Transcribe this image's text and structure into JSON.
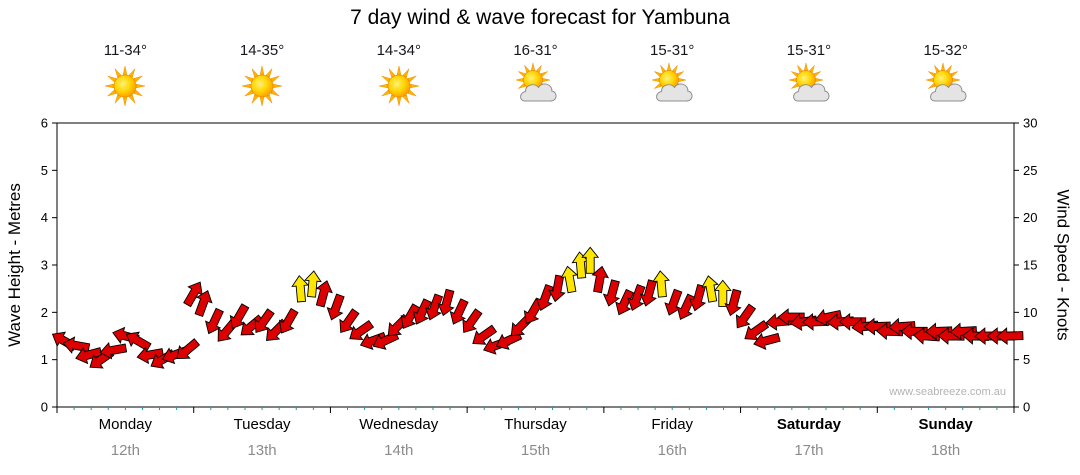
{
  "watermark": "www.seabreeze.com.au",
  "days": [
    {
      "name": "Monday",
      "date": "12th",
      "temp": "11-34°",
      "icon": "sunny",
      "bold": false
    },
    {
      "name": "Tuesday",
      "date": "13th",
      "temp": "14-35°",
      "icon": "sunny",
      "bold": false
    },
    {
      "name": "Wednesday",
      "date": "14th",
      "temp": "14-34°",
      "icon": "sunny",
      "bold": false
    },
    {
      "name": "Thursday",
      "date": "15th",
      "temp": "16-31°",
      "icon": "partly",
      "bold": false
    },
    {
      "name": "Friday",
      "date": "16th",
      "temp": "15-31°",
      "icon": "partly",
      "bold": false
    },
    {
      "name": "Saturday",
      "date": "17th",
      "temp": "15-31°",
      "icon": "partly",
      "bold": true
    },
    {
      "name": "Sunday",
      "date": "18th",
      "temp": "15-32°",
      "icon": "partly",
      "bold": true
    }
  ],
  "chart_data": {
    "type": "wind-arrow-timeseries",
    "title": "7 day wind & wave forecast for Yambuna",
    "x_axis": {
      "unit": "days",
      "span_days": 7,
      "categories": [
        "Monday 12th",
        "Tuesday 13th",
        "Wednesday 14th",
        "Thursday 15th",
        "Friday 16th",
        "Saturday 17th",
        "Sunday 18th"
      ]
    },
    "y_left": {
      "label": "Wave Height - Metres",
      "min": 0,
      "max": 6,
      "ticks": [
        0,
        1,
        2,
        3,
        4,
        5,
        6
      ]
    },
    "y_right": {
      "label": "Wind Speed - Knots",
      "min": 0,
      "max": 30,
      "ticks": [
        0,
        5,
        10,
        15,
        20,
        25,
        30
      ]
    },
    "legend": "arrow color indicates wind strength band",
    "colors": {
      "r": "#dd0000",
      "y": "#ffe600"
    },
    "point_format": [
      "x_days",
      "wind_knots",
      "arrow_rotation_deg",
      "color"
    ],
    "points": [
      [
        0.05,
        7,
        300,
        "r"
      ],
      [
        0.14,
        6.5,
        280,
        "r"
      ],
      [
        0.23,
        5.5,
        255,
        "r"
      ],
      [
        0.32,
        5,
        235,
        "r"
      ],
      [
        0.41,
        6,
        260,
        "r"
      ],
      [
        0.5,
        7.5,
        285,
        "r"
      ],
      [
        0.59,
        7,
        300,
        "r"
      ],
      [
        0.68,
        5.5,
        260,
        "r"
      ],
      [
        0.77,
        5,
        240,
        "r"
      ],
      [
        0.86,
        5.5,
        250,
        "r"
      ],
      [
        0.95,
        6,
        230,
        "r"
      ],
      [
        1.0,
        12,
        30,
        "r"
      ],
      [
        1.07,
        11,
        20,
        "r"
      ],
      [
        1.15,
        9,
        205,
        "r"
      ],
      [
        1.24,
        8,
        220,
        "r"
      ],
      [
        1.33,
        9.5,
        210,
        "r"
      ],
      [
        1.42,
        8.5,
        230,
        "r"
      ],
      [
        1.51,
        9,
        215,
        "r"
      ],
      [
        1.6,
        8,
        225,
        "r"
      ],
      [
        1.69,
        9,
        210,
        "r"
      ],
      [
        1.78,
        12.5,
        355,
        "y"
      ],
      [
        1.87,
        13,
        5,
        "y"
      ],
      [
        1.95,
        12,
        15,
        "r"
      ],
      [
        2.04,
        10.5,
        200,
        "r"
      ],
      [
        2.13,
        9,
        215,
        "r"
      ],
      [
        2.22,
        8,
        235,
        "r"
      ],
      [
        2.31,
        7,
        250,
        "r"
      ],
      [
        2.4,
        7,
        245,
        "r"
      ],
      [
        2.49,
        8.5,
        225,
        "r"
      ],
      [
        2.58,
        9.5,
        210,
        "r"
      ],
      [
        2.67,
        10,
        205,
        "r"
      ],
      [
        2.76,
        10.5,
        200,
        "r"
      ],
      [
        2.85,
        11,
        195,
        "r"
      ],
      [
        2.94,
        10,
        205,
        "r"
      ],
      [
        3.03,
        9,
        215,
        "r"
      ],
      [
        3.12,
        7.5,
        235,
        "r"
      ],
      [
        3.21,
        6.5,
        250,
        "r"
      ],
      [
        3.3,
        7,
        245,
        "r"
      ],
      [
        3.39,
        8.5,
        225,
        "r"
      ],
      [
        3.48,
        10,
        210,
        "r"
      ],
      [
        3.57,
        11.5,
        200,
        "r"
      ],
      [
        3.66,
        12.5,
        190,
        "r"
      ],
      [
        3.75,
        13.5,
        350,
        "y"
      ],
      [
        3.83,
        15,
        355,
        "y"
      ],
      [
        3.9,
        15.5,
        0,
        "y"
      ],
      [
        3.97,
        13.5,
        10,
        "r"
      ],
      [
        4.06,
        12,
        195,
        "r"
      ],
      [
        4.15,
        11,
        205,
        "r"
      ],
      [
        4.24,
        11.5,
        200,
        "r"
      ],
      [
        4.33,
        12,
        195,
        "r"
      ],
      [
        4.42,
        13,
        355,
        "y"
      ],
      [
        4.51,
        11,
        200,
        "r"
      ],
      [
        4.6,
        10.5,
        205,
        "r"
      ],
      [
        4.69,
        11.5,
        195,
        "r"
      ],
      [
        4.78,
        12.5,
        350,
        "y"
      ],
      [
        4.87,
        12,
        0,
        "y"
      ],
      [
        4.95,
        11,
        195,
        "r"
      ],
      [
        5.03,
        9.5,
        215,
        "r"
      ],
      [
        5.11,
        8,
        235,
        "r"
      ],
      [
        5.19,
        7,
        255,
        "r"
      ],
      [
        5.28,
        9,
        265,
        "r"
      ],
      [
        5.37,
        9.5,
        270,
        "r"
      ],
      [
        5.46,
        9,
        262,
        "r"
      ],
      [
        5.55,
        9,
        268,
        "r"
      ],
      [
        5.64,
        9.5,
        258,
        "r"
      ],
      [
        5.73,
        9,
        266,
        "r"
      ],
      [
        5.82,
        9,
        270,
        "r"
      ],
      [
        5.91,
        8.5,
        264,
        "r"
      ],
      [
        6.0,
        8.5,
        268,
        "r"
      ],
      [
        6.09,
        8,
        272,
        "r"
      ],
      [
        6.18,
        8.5,
        266,
        "r"
      ],
      [
        6.27,
        8,
        270,
        "r"
      ],
      [
        6.36,
        7.5,
        274,
        "r"
      ],
      [
        6.45,
        8,
        268,
        "r"
      ],
      [
        6.54,
        7.5,
        271,
        "r"
      ],
      [
        6.63,
        8,
        267,
        "r"
      ],
      [
        6.72,
        7.5,
        272,
        "r"
      ],
      [
        6.81,
        7.5,
        269,
        "r"
      ],
      [
        6.9,
        7.5,
        270,
        "r"
      ],
      [
        6.97,
        7.5,
        268,
        "r"
      ]
    ]
  }
}
